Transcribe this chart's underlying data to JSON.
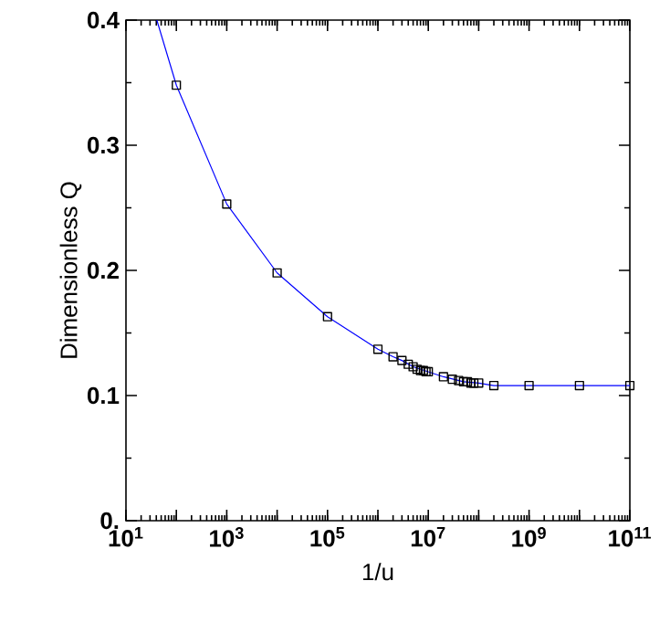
{
  "chart_data": {
    "type": "scatter",
    "xlabel": "1/u",
    "ylabel": "Dimensionless Q",
    "log": "x",
    "xlim": [
      10,
      100000000000
    ],
    "ylim": [
      0,
      0.4
    ],
    "xticks": [
      {
        "value": 10,
        "label": "10$^{1}$"
      },
      {
        "value": 100,
        "label": null
      },
      {
        "value": 1000,
        "label": "10$^{3}$"
      },
      {
        "value": 10000,
        "label": null
      },
      {
        "value": 100000,
        "label": "10$^{5}$"
      },
      {
        "value": 1000000,
        "label": null
      },
      {
        "value": 10000000,
        "label": "10$^{7}$"
      },
      {
        "value": 100000000,
        "label": null
      },
      {
        "value": 1000000000,
        "label": "10$^{9}$"
      },
      {
        "value": 10000000000,
        "label": null
      },
      {
        "value": 100000000000,
        "label": "10$^{11}$"
      }
    ],
    "yticks": [
      {
        "value": 0,
        "label": "0."
      },
      0.1,
      0.2,
      0.3,
      0.4
    ],
    "series": [
      {
        "type": "line",
        "color": "#0000ff",
        "marker": "none",
        "line_style": "solid",
        "x": [
          41,
          100,
          1000,
          10000,
          100000,
          1000000,
          2000000,
          3000000,
          5000000,
          10000000,
          20000000,
          50000000,
          100000000,
          200000000,
          1000000000,
          10000000000,
          100000000000
        ],
        "values": [
          0.4,
          0.348,
          0.253,
          0.198,
          0.163,
          0.137,
          0.131,
          0.128,
          0.123,
          0.119,
          0.115,
          0.111,
          0.11,
          0.108,
          0.108,
          0.108,
          0.108
        ]
      },
      {
        "color": "#000000",
        "marker": "square",
        "x": [
          100,
          1000,
          10000,
          100000,
          1000000,
          2000000,
          3000000,
          4000000,
          5000000,
          6000000,
          7000000,
          8000000,
          9000000,
          10000000,
          20000000,
          30000000,
          40000000,
          50000000,
          60000000,
          70000000,
          80000000,
          100000000,
          200000000,
          1000000000,
          10000000000,
          100000000000
        ],
        "values": [
          0.348,
          0.253,
          0.198,
          0.163,
          0.137,
          0.131,
          0.128,
          0.125,
          0.123,
          0.121,
          0.12,
          0.12,
          0.119,
          0.119,
          0.115,
          0.113,
          0.112,
          0.111,
          0.111,
          0.11,
          0.11,
          0.11,
          0.108,
          0.108,
          0.108,
          0.108
        ]
      }
    ]
  }
}
